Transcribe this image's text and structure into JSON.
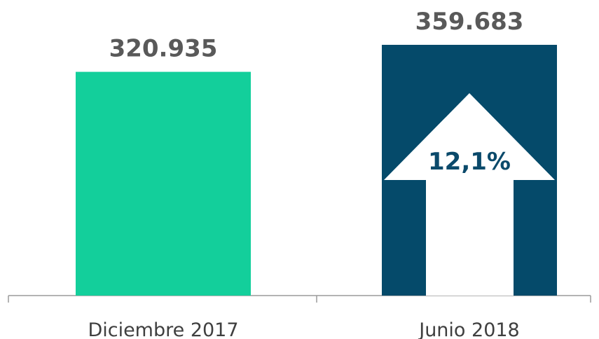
{
  "chart_data": {
    "type": "bar",
    "categories": [
      "Diciembre 2017",
      "Junio 2018"
    ],
    "values": [
      320935,
      359683
    ],
    "value_labels": [
      "320.935",
      "359.683"
    ],
    "ylim": [
      0,
      400000
    ],
    "grid": false,
    "legend": "none",
    "annotation": {
      "text": "12,1%",
      "icon": "up-arrow-icon",
      "color": "#0b4a6b"
    },
    "colors": {
      "bar_1": "#13cf9b",
      "bar_2": "#054a6a",
      "axis": "#9a9a9a"
    }
  }
}
